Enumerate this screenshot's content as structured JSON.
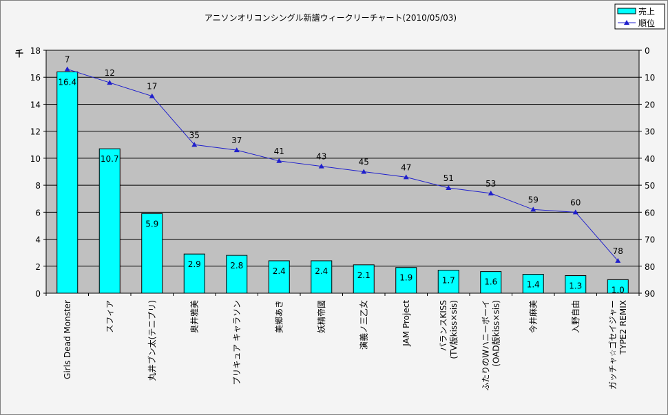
{
  "chart_data": {
    "type": "bar-line",
    "title": "アニソンオリコンシングル新譜ウィークリーチャート(2010/05/03)",
    "y_unit": "千",
    "categories": [
      [
        "Girls Dead Monster"
      ],
      [
        "スフィア"
      ],
      [
        "丸井ブン太(テニプリ)"
      ],
      [
        "奥井雅美"
      ],
      [
        "プリキュア キャラソン"
      ],
      [
        "美郷あき"
      ],
      [
        "妖精帝國"
      ],
      [
        "演義ノ三乙女"
      ],
      [
        "JAM Project"
      ],
      [
        "バランスKISS",
        "(TV版kiss×sis)"
      ],
      [
        "ふたりのWハニーボーイ",
        "(OAD版kiss×sis)"
      ],
      [
        "今井麻美"
      ],
      [
        "入野自由"
      ],
      [
        "ガッチャ☆ゴセイジャー",
        "TYPE2 REMIX"
      ]
    ],
    "series": [
      {
        "name": "売上",
        "type": "bar",
        "color": "#00ffff",
        "values": [
          16.4,
          10.7,
          5.9,
          2.9,
          2.8,
          2.4,
          2.4,
          2.1,
          1.9,
          1.7,
          1.6,
          1.4,
          1.3,
          1.0
        ],
        "value_labels": [
          "16.4",
          "10.7",
          "5.9",
          "2.9",
          "2.8",
          "2.4",
          "2.4",
          "2.1",
          "1.9",
          "1.7",
          "1.6",
          "1.4",
          "1.3",
          "1.0"
        ]
      },
      {
        "name": "順位",
        "type": "line",
        "axis": "y2",
        "color": "#1f1fcc",
        "values": [
          7,
          12,
          17,
          35,
          37,
          41,
          43,
          45,
          47,
          51,
          53,
          59,
          60,
          78
        ]
      }
    ],
    "ylim": [
      0,
      18
    ],
    "yticks": [
      0,
      2,
      4,
      6,
      8,
      10,
      12,
      14,
      16,
      18
    ],
    "y2lim": [
      0,
      90
    ],
    "y2_reversed": true,
    "y2ticks": [
      0,
      10,
      20,
      30,
      40,
      50,
      60,
      70,
      80,
      90
    ],
    "grid": true,
    "legend": "top-right"
  }
}
